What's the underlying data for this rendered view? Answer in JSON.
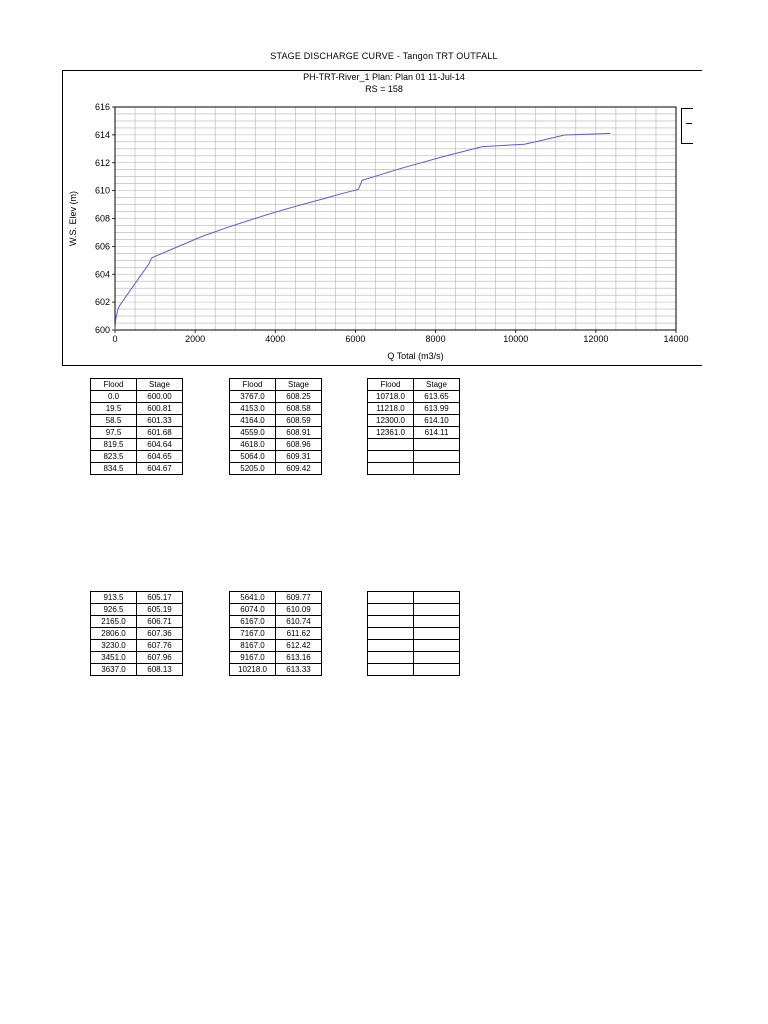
{
  "page_title": "STAGE DISCHARGE CURVE - Tangon TRT OUTFALL",
  "chart_subtitle_1": "PH-TRT-River_1       Plan: Plan 01     11-Jul-14",
  "chart_subtitle_2": "RS = 158",
  "chart_data": {
    "type": "line",
    "title": "STAGE DISCHARGE CURVE - Tangon TRT OUTFALL",
    "subtitle": "PH-TRT-River_1       Plan: Plan 01     11-Jul-14",
    "subtitle2": "RS = 158",
    "xlabel": "Q Total  (m3/s)",
    "ylabel": "W.S. Elev  (m)",
    "xlim": [
      0,
      14000
    ],
    "ylim": [
      600,
      616
    ],
    "x_ticks": [
      0,
      2000,
      4000,
      6000,
      8000,
      10000,
      12000,
      14000
    ],
    "y_ticks": [
      600,
      602,
      604,
      606,
      608,
      610,
      612,
      614,
      616
    ],
    "grid": true,
    "line_color": "#5b5bd6",
    "series": [
      {
        "x": [
          0,
          19.5,
          58.5,
          97.5,
          819.5,
          823.5,
          834.5,
          913.5,
          926.5,
          2165,
          2806,
          3230,
          3451,
          3637,
          3767,
          4153,
          4164,
          4559,
          4618,
          5064,
          5205,
          5641,
          6074,
          6167,
          7167,
          8167,
          9167,
          10218,
          10718,
          11218,
          12300,
          12361
        ],
        "y": [
          600.0,
          600.81,
          601.33,
          601.68,
          604.64,
          604.65,
          604.67,
          605.17,
          605.19,
          606.71,
          607.36,
          607.76,
          607.96,
          608.13,
          608.25,
          608.58,
          608.59,
          608.91,
          608.96,
          609.31,
          609.42,
          609.77,
          610.09,
          610.74,
          611.62,
          612.42,
          613.16,
          613.33,
          613.65,
          613.99,
          614.1,
          614.11
        ]
      }
    ]
  },
  "tables": [
    {
      "headers": [
        "Flood",
        "Stage"
      ],
      "rows": [
        [
          "0.0",
          "600.00"
        ],
        [
          "19.5",
          "600.81"
        ],
        [
          "58.5",
          "601.33"
        ],
        [
          "97.5",
          "601.68"
        ],
        [
          "819.5",
          "604.64"
        ],
        [
          "823.5",
          "604.65"
        ],
        [
          "834.5",
          "604.67"
        ]
      ]
    },
    {
      "headers": [
        "Flood",
        "Stage"
      ],
      "rows": [
        [
          "3767.0",
          "608.25"
        ],
        [
          "4153.0",
          "608.58"
        ],
        [
          "4164.0",
          "608.59"
        ],
        [
          "4559.0",
          "608.91"
        ],
        [
          "4618.0",
          "608.96"
        ],
        [
          "5064.0",
          "609.31"
        ],
        [
          "5205.0",
          "609.42"
        ]
      ]
    },
    {
      "headers": [
        "Flood",
        "Stage"
      ],
      "rows": [
        [
          "10718.0",
          "613.65"
        ],
        [
          "11218.0",
          "613.99"
        ],
        [
          "12300.0",
          "614.10"
        ],
        [
          "12361.0",
          "614.11"
        ],
        [
          "",
          ""
        ],
        [
          "",
          ""
        ],
        [
          "",
          ""
        ]
      ]
    },
    {
      "headers": [],
      "rows": [
        [
          "913.5",
          "605.17"
        ],
        [
          "926.5",
          "605.19"
        ],
        [
          "2165.0",
          "606.71"
        ],
        [
          "2806.0",
          "607.36"
        ],
        [
          "3230.0",
          "607.76"
        ],
        [
          "3451.0",
          "607.96"
        ],
        [
          "3637.0",
          "608.13"
        ]
      ]
    },
    {
      "headers": [],
      "rows": [
        [
          "5641.0",
          "609.77"
        ],
        [
          "6074.0",
          "610.09"
        ],
        [
          "6167.0",
          "610.74"
        ],
        [
          "7167.0",
          "611.62"
        ],
        [
          "8167.0",
          "612.42"
        ],
        [
          "9167.0",
          "613.16"
        ],
        [
          "10218.0",
          "613.33"
        ]
      ]
    },
    {
      "headers": [],
      "rows": [
        [
          "",
          ""
        ],
        [
          "",
          ""
        ],
        [
          "",
          ""
        ],
        [
          "",
          ""
        ],
        [
          "",
          ""
        ],
        [
          "",
          ""
        ],
        [
          "",
          ""
        ]
      ]
    }
  ]
}
